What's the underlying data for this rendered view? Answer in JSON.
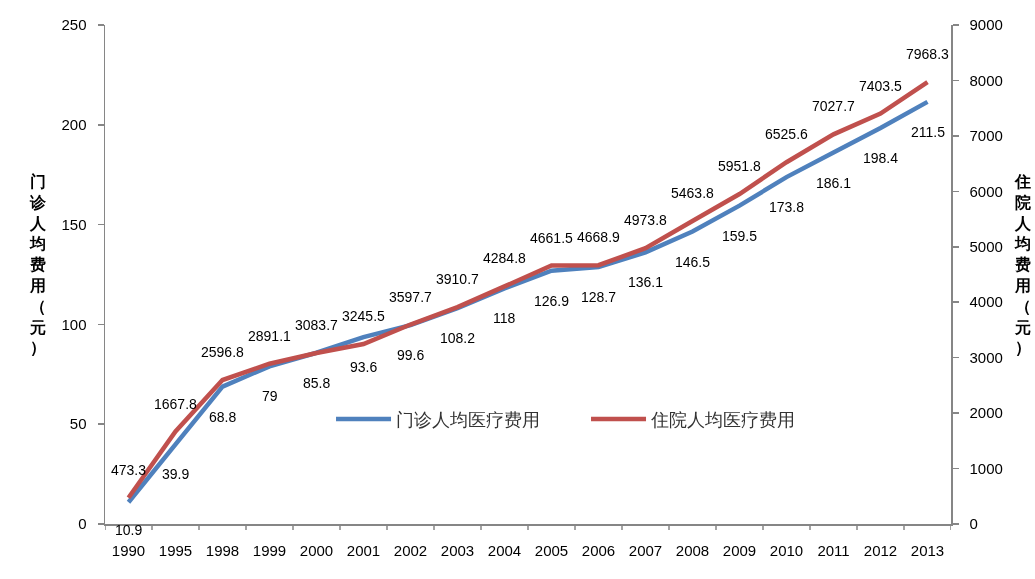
{
  "chart_data": {
    "type": "line",
    "categories": [
      "1990",
      "1995",
      "1998",
      "1999",
      "2000",
      "2001",
      "2002",
      "2003",
      "2004",
      "2005",
      "2006",
      "2007",
      "2008",
      "2009",
      "2010",
      "2011",
      "2012",
      "2013"
    ],
    "series": [
      {
        "name": "门诊人均医疗费用",
        "color": "#4f81bd",
        "values": [
          10.9,
          39.9,
          68.8,
          79,
          85.8,
          93.6,
          99.6,
          108.2,
          118,
          126.9,
          128.7,
          136.1,
          146.5,
          159.5,
          173.8,
          186.1,
          198.4,
          211.5
        ]
      },
      {
        "name": "住院人均医疗费用",
        "color": "#c0504d",
        "axis": "y2",
        "values": [
          473.3,
          1667.8,
          2596.8,
          2891.1,
          3083.7,
          3245.5,
          3597.7,
          3910.7,
          4284.8,
          4661.5,
          4668.9,
          4973.8,
          5463.8,
          5951.8,
          6525.6,
          7027.7,
          7403.5,
          7968.3
        ]
      }
    ],
    "ylabel": "门诊人均费用（元）",
    "y2label": "住院人均费用（元）",
    "ylim": [
      0,
      250
    ],
    "yticks": [
      0,
      50,
      100,
      150,
      200,
      250
    ],
    "y2lim": [
      0,
      9000
    ],
    "y2ticks": [
      0,
      1000,
      2000,
      3000,
      4000,
      5000,
      6000,
      7000,
      8000,
      9000
    ],
    "data_labels": true,
    "legend": "bottom right",
    "line_style": "solid"
  }
}
